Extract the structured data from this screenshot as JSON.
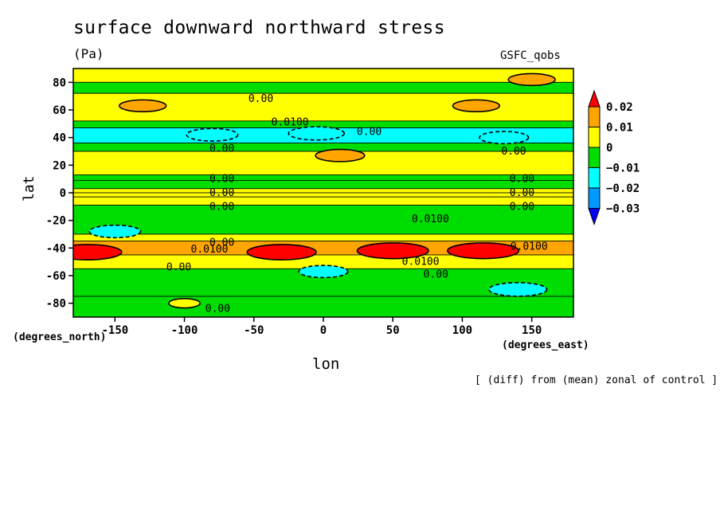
{
  "chart_data": {
    "type": "heatmap",
    "title": "surface downward northward stress",
    "units": "(Pa)",
    "source": "GSFC_qobs",
    "xlabel": "lon",
    "ylabel": "lat",
    "x_units": "(degrees_east)",
    "y_units": "(degrees_north)",
    "note": "[ (diff) from (mean) zonal of control ]",
    "xlim": [
      -180,
      180
    ],
    "ylim": [
      -90,
      90
    ],
    "x_ticks": [
      -150,
      -100,
      -50,
      0,
      50,
      100,
      150
    ],
    "y_ticks": [
      80,
      60,
      40,
      20,
      0,
      -20,
      -40,
      -60,
      -80
    ],
    "colorbar": {
      "levels": [
        0.02,
        0.01,
        0,
        -0.01,
        -0.02,
        -0.03
      ],
      "level_labels": [
        "0.02",
        "0.01",
        "0",
        "−0.01",
        "−0.02",
        "−0.03"
      ],
      "colors": [
        "#ff0000",
        "#ffa500",
        "#ffff00",
        "#00dd00",
        "#00ffff",
        "#0099ff",
        "#0000ff"
      ]
    },
    "bands": [
      {
        "lat_from": 80,
        "lat_to": 90,
        "value": 0.003
      },
      {
        "lat_from": 72,
        "lat_to": 80,
        "value": -0.005
      },
      {
        "lat_from": 52,
        "lat_to": 72,
        "value": 0.004
      },
      {
        "lat_from": 47,
        "lat_to": 52,
        "value": -0.005
      },
      {
        "lat_from": 36,
        "lat_to": 47,
        "value": -0.013
      },
      {
        "lat_from": 30,
        "lat_to": 36,
        "value": -0.004
      },
      {
        "lat_from": 13,
        "lat_to": 30,
        "value": 0.004
      },
      {
        "lat_from": 9,
        "lat_to": 13,
        "value": -0.004
      },
      {
        "lat_from": 3,
        "lat_to": 9,
        "value": -0.007
      },
      {
        "lat_from": 0,
        "lat_to": 3,
        "value": 0.003
      },
      {
        "lat_from": -3,
        "lat_to": 0,
        "value": 0.002
      },
      {
        "lat_from": -9,
        "lat_to": -3,
        "value": 0.003
      },
      {
        "lat_from": -30,
        "lat_to": -9,
        "value": -0.006
      },
      {
        "lat_from": -35,
        "lat_to": -30,
        "value": 0.004
      },
      {
        "lat_from": -45,
        "lat_to": -35,
        "value": 0.013
      },
      {
        "lat_from": -55,
        "lat_to": -45,
        "value": 0.004
      },
      {
        "lat_from": -75,
        "lat_to": -55,
        "value": -0.005
      },
      {
        "lat_from": -90,
        "lat_to": -75,
        "value": -0.003
      }
    ],
    "anomalies": [
      {
        "lon": -5,
        "lat": 43,
        "value": -0.015
      },
      {
        "lon": -80,
        "lat": 42,
        "value": -0.013
      },
      {
        "lon": 130,
        "lat": 40,
        "value": -0.012
      },
      {
        "lon": 12,
        "lat": 27,
        "value": 0.012
      },
      {
        "lon": -130,
        "lat": 63,
        "value": 0.011
      },
      {
        "lon": 110,
        "lat": 63,
        "value": 0.011
      },
      {
        "lon": 150,
        "lat": 82,
        "value": 0.011
      },
      {
        "lon": 50,
        "lat": -42,
        "value": 0.022
      },
      {
        "lon": 115,
        "lat": -42,
        "value": 0.022
      },
      {
        "lon": -170,
        "lat": -43,
        "value": 0.021
      },
      {
        "lon": -30,
        "lat": -43,
        "value": 0.021
      },
      {
        "lon": 140,
        "lat": -70,
        "value": -0.016
      },
      {
        "lon": 0,
        "lat": -57,
        "value": -0.012
      },
      {
        "lon": -150,
        "lat": -28,
        "value": -0.013
      },
      {
        "lon": -100,
        "lat": -80,
        "value": 0.004
      }
    ],
    "contour_labels": [
      {
        "text": "0.00",
        "lon": -45,
        "lat": 68
      },
      {
        "text": "0.0100",
        "lon": -24,
        "lat": 51
      },
      {
        "text": "0.00",
        "lon": 33,
        "lat": 44
      },
      {
        "text": "0.00",
        "lon": -73,
        "lat": 32
      },
      {
        "text": "0.00",
        "lon": 137,
        "lat": 30
      },
      {
        "text": "0.00",
        "lon": -73,
        "lat": 10
      },
      {
        "text": "0.00",
        "lon": 143,
        "lat": 10
      },
      {
        "text": "0.00",
        "lon": -73,
        "lat": 0
      },
      {
        "text": "0.00",
        "lon": 143,
        "lat": 0
      },
      {
        "text": "0.00",
        "lon": -73,
        "lat": -10
      },
      {
        "text": "0.00",
        "lon": 143,
        "lat": -10
      },
      {
        "text": "0.0100",
        "lon": 77,
        "lat": -19
      },
      {
        "text": "0.00",
        "lon": -73,
        "lat": -36
      },
      {
        "text": "0.0100",
        "lon": -82,
        "lat": -41
      },
      {
        "text": "0.0100",
        "lon": 148,
        "lat": -39
      },
      {
        "text": "0.00",
        "lon": -104,
        "lat": -54
      },
      {
        "text": "0.0100",
        "lon": 70,
        "lat": -50
      },
      {
        "text": "0.00",
        "lon": 81,
        "lat": -59
      },
      {
        "text": "0.00",
        "lon": -76,
        "lat": -84
      }
    ]
  }
}
